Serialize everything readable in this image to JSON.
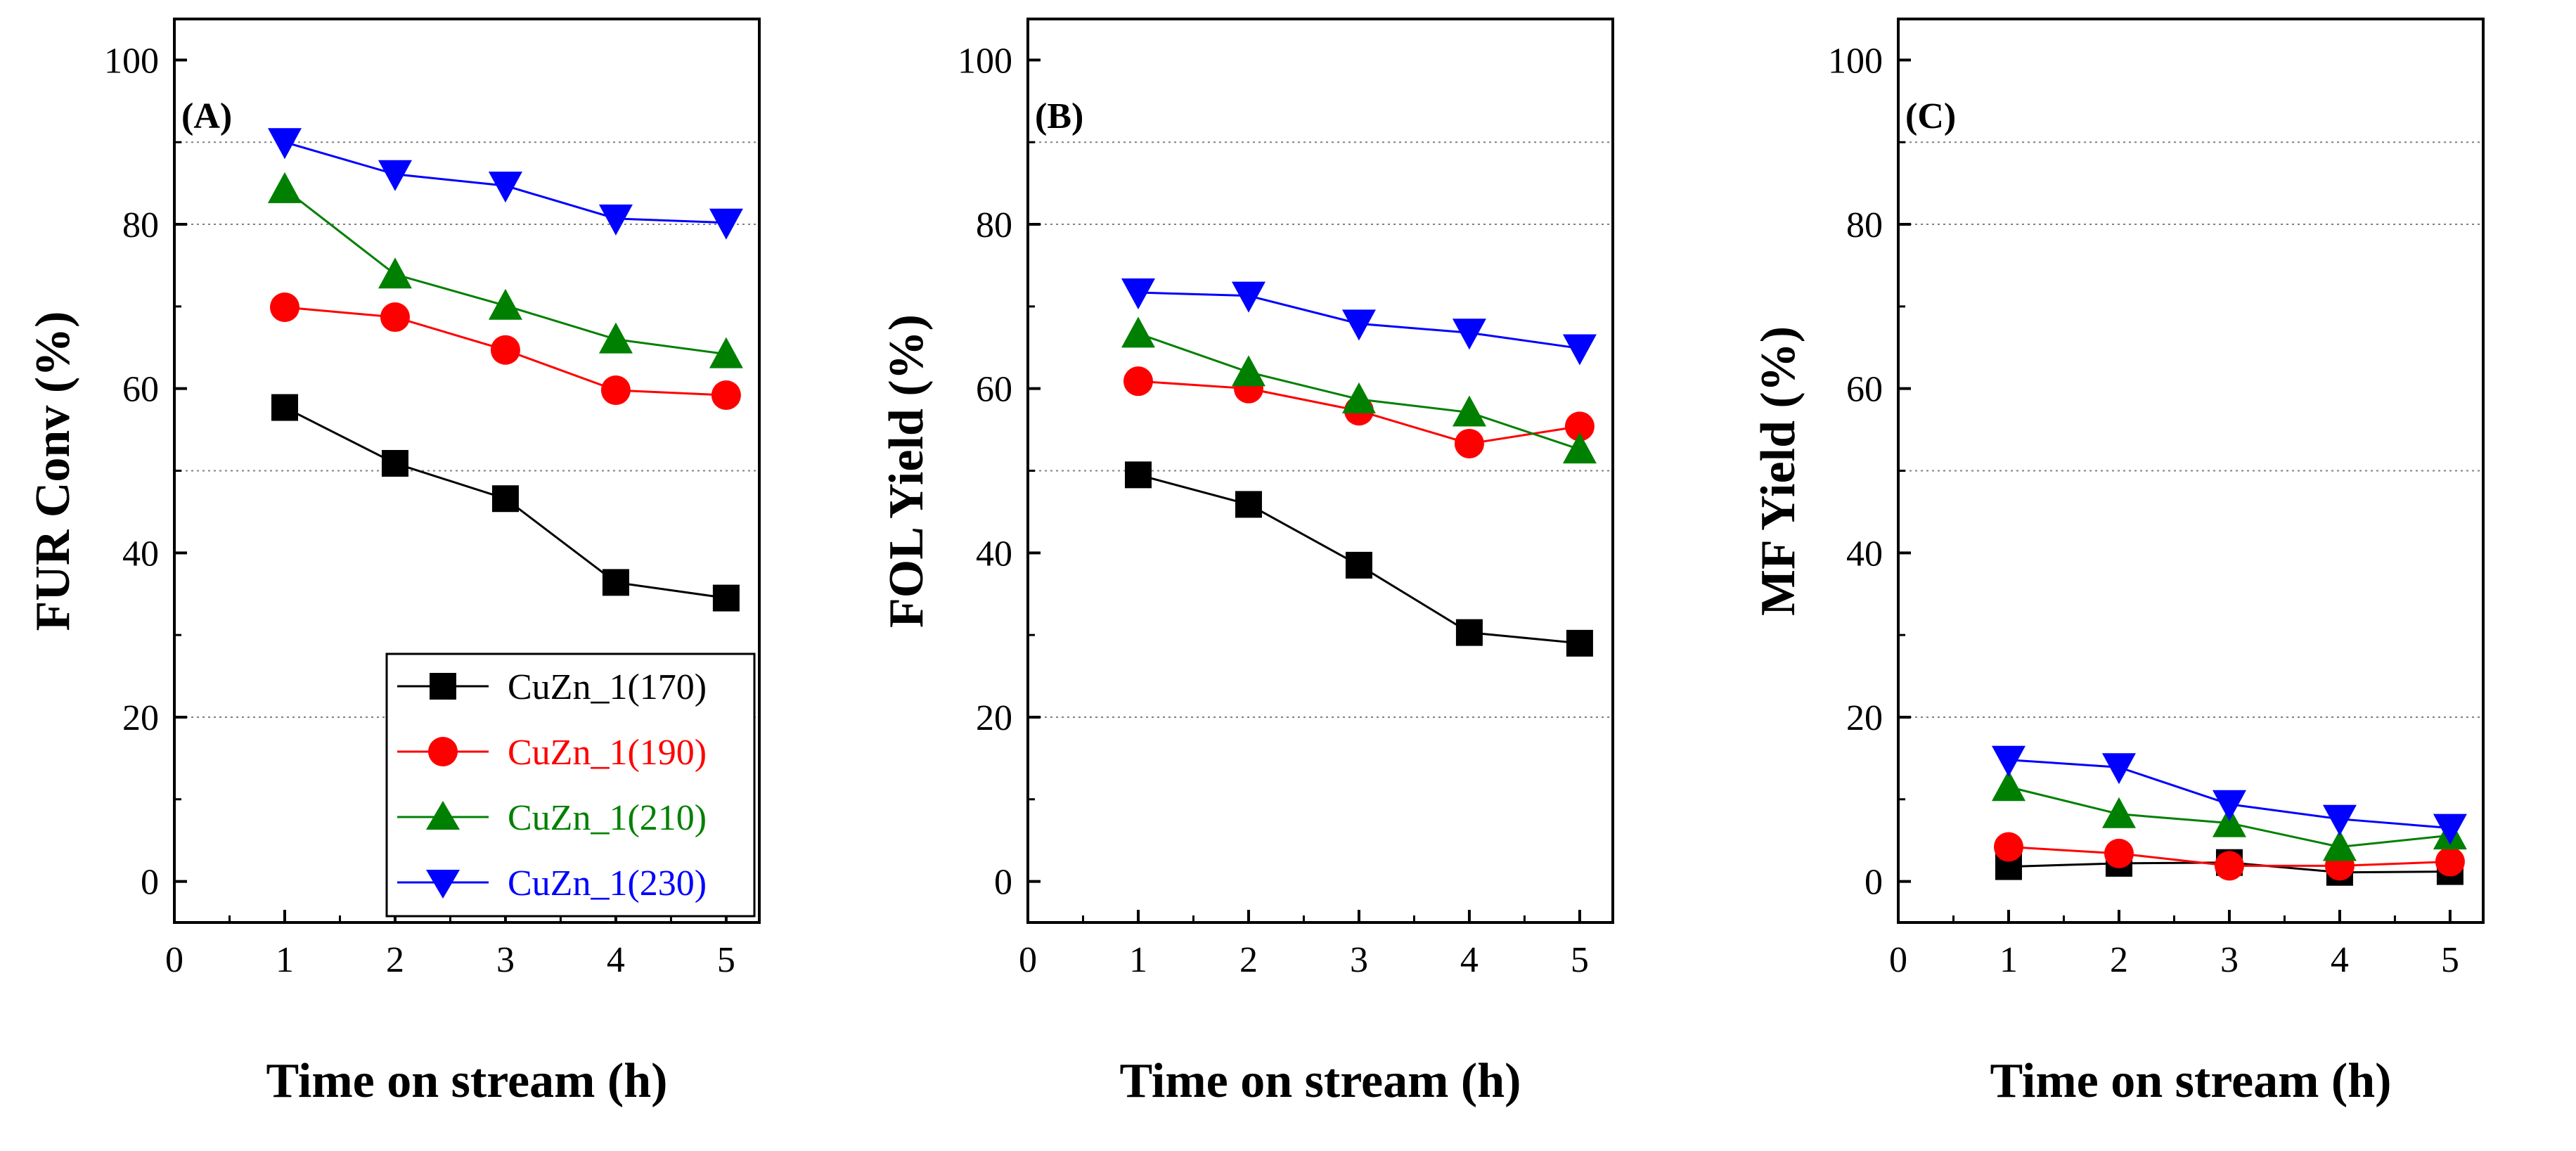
{
  "colors": {
    "CuZn_1(170)": "#000000",
    "CuZn_1(190)": "#ff0000",
    "CuZn_1(210)": "#008000",
    "CuZn_1(230)": "#0000ff",
    "grid": "#808080"
  },
  "chart_data": [
    {
      "type": "line",
      "panel_label": "(A)",
      "xlabel": "Time on stream (h)",
      "ylabel": "FUR Conv (%)",
      "xlim": [
        0,
        5.3
      ],
      "ylim": [
        -5,
        105
      ],
      "x_ticks": [
        "0",
        "1",
        "2",
        "3",
        "4",
        "5"
      ],
      "y_ticks": [
        "0",
        "20",
        "40",
        "60",
        "80",
        "100"
      ],
      "grid": "horizontal dotted lines at 20, 50, 80, 90",
      "legend": {
        "placement": "bottom-right",
        "entries": [
          "CuZn_1(170)",
          "CuZn_1(190)",
          "CuZn_1(210)",
          "CuZn_1(230)"
        ]
      },
      "x": [
        1,
        2,
        3,
        4,
        5
      ],
      "series": [
        {
          "name": "CuZn_1(170)",
          "marker": "square",
          "values": [
            57.7,
            50.9,
            46.6,
            36.4,
            34.5
          ]
        },
        {
          "name": "CuZn_1(190)",
          "marker": "circle",
          "values": [
            69.9,
            68.7,
            64.7,
            59.8,
            59.2
          ]
        },
        {
          "name": "CuZn_1(210)",
          "marker": "triangle-up",
          "values": [
            84.3,
            73.9,
            70.1,
            66.0,
            64.2
          ]
        },
        {
          "name": "CuZn_1(230)",
          "marker": "triangle-down",
          "values": [
            90.0,
            86.1,
            84.7,
            80.7,
            80.2
          ]
        }
      ]
    },
    {
      "type": "line",
      "panel_label": "(B)",
      "xlabel": "Time on stream (h)",
      "ylabel": "FOL Yield (%)",
      "xlim": [
        0,
        5.3
      ],
      "ylim": [
        -5,
        105
      ],
      "x_ticks": [
        "0",
        "1",
        "2",
        "3",
        "4",
        "5"
      ],
      "y_ticks": [
        "0",
        "20",
        "40",
        "60",
        "80",
        "100"
      ],
      "grid": "horizontal dotted lines at 20, 50, 80, 90",
      "x": [
        1,
        2,
        3,
        4,
        5
      ],
      "series": [
        {
          "name": "CuZn_1(170)",
          "marker": "square",
          "values": [
            49.5,
            45.9,
            38.5,
            30.3,
            29.0
          ]
        },
        {
          "name": "CuZn_1(190)",
          "marker": "circle",
          "values": [
            60.9,
            60.0,
            57.3,
            53.3,
            55.4
          ]
        },
        {
          "name": "CuZn_1(210)",
          "marker": "triangle-up",
          "values": [
            66.7,
            62.0,
            58.7,
            57.1,
            52.6
          ]
        },
        {
          "name": "CuZn_1(230)",
          "marker": "triangle-down",
          "values": [
            71.7,
            71.3,
            67.9,
            66.8,
            64.9
          ]
        }
      ]
    },
    {
      "type": "line",
      "panel_label": "(C)",
      "xlabel": "Time on stream (h)",
      "ylabel": "MF Yield (%)",
      "xlim": [
        0,
        5.3
      ],
      "ylim": [
        -5,
        105
      ],
      "x_ticks": [
        "0",
        "1",
        "2",
        "3",
        "4",
        "5"
      ],
      "y_ticks": [
        "0",
        "20",
        "40",
        "60",
        "80",
        "100"
      ],
      "grid": "horizontal dotted lines at 20, 50, 80, 90",
      "x": [
        1,
        2,
        3,
        4,
        5
      ],
      "series": [
        {
          "name": "CuZn_1(170)",
          "marker": "square",
          "values": [
            1.8,
            2.2,
            2.3,
            1.1,
            1.2
          ]
        },
        {
          "name": "CuZn_1(190)",
          "marker": "circle",
          "values": [
            4.2,
            3.4,
            1.9,
            1.9,
            2.4
          ]
        },
        {
          "name": "CuZn_1(210)",
          "marker": "triangle-up",
          "values": [
            11.5,
            8.2,
            7.1,
            4.2,
            5.6
          ]
        },
        {
          "name": "CuZn_1(230)",
          "marker": "triangle-down",
          "values": [
            14.8,
            13.9,
            9.4,
            7.6,
            6.5
          ]
        }
      ]
    }
  ]
}
